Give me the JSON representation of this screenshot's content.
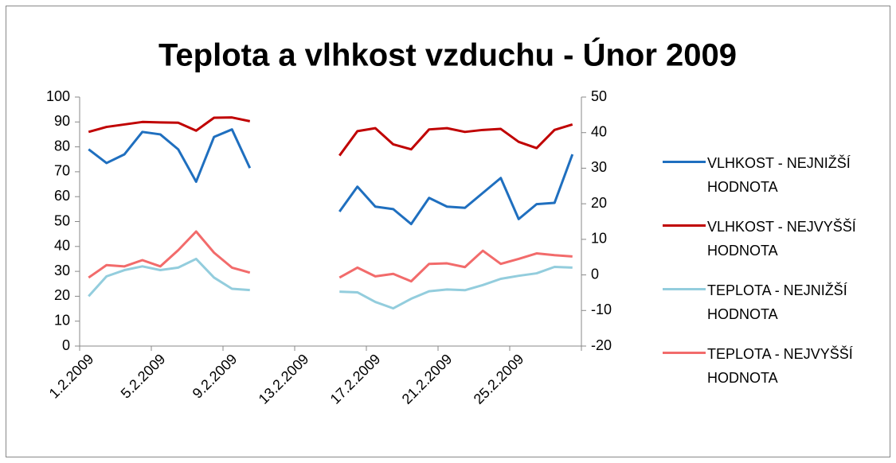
{
  "chart_data": {
    "type": "line",
    "title": "Teplota a vlhkost vzduchu - Únor 2009",
    "categories": [
      "1.2.2009",
      null,
      null,
      null,
      "5.2.2009",
      null,
      null,
      null,
      "9.2.2009",
      null,
      null,
      null,
      "13.2.2009",
      null,
      null,
      null,
      "17.2.2009",
      null,
      null,
      null,
      "21.2.2009",
      null,
      null,
      null,
      "25.2.2009",
      null,
      null,
      null
    ],
    "ylim": [
      0,
      100
    ],
    "yticks": [
      0,
      10,
      20,
      30,
      40,
      50,
      60,
      70,
      80,
      90,
      100
    ],
    "y2lim": [
      -20,
      50
    ],
    "y2ticks": [
      -20,
      -10,
      0,
      10,
      20,
      30,
      40,
      50
    ],
    "series": [
      {
        "name": "VLHKOST - NEJNIŽŠÍ HODNOTA",
        "color": "#1f6fbf",
        "values": [
          79,
          73.5,
          77,
          86,
          85,
          79,
          66,
          84,
          87,
          71.5,
          null,
          null,
          null,
          null,
          54,
          64,
          56,
          55,
          49,
          59.5,
          56,
          55.5,
          61.5,
          67.5,
          51,
          57,
          57.5,
          77
        ]
      },
      {
        "name": "VLHKOST - NEJVYŠŠÍ HODNOTA",
        "color": "#c00000",
        "values": [
          86,
          88,
          89,
          90,
          89.8,
          89.7,
          86.5,
          91.7,
          91.8,
          90.3,
          null,
          null,
          null,
          null,
          76.5,
          86.3,
          87.5,
          81,
          79,
          87,
          87.5,
          86,
          86.8,
          87.2,
          82,
          79.5,
          86.8,
          89
        ]
      },
      {
        "name": "TEPLOTA - NEJNIŽŠÍ HODNOTA",
        "color": "#93cddd",
        "axis": "y2",
        "values": [
          -6,
          -0.4,
          1.35,
          2.4,
          1.35,
          2.05,
          4.5,
          -0.75,
          -3.9,
          -4.25,
          null,
          null,
          null,
          null,
          -4.7,
          -4.9,
          -7.6,
          -9.4,
          -6.7,
          -4.6,
          -4.1,
          -4.3,
          -2.85,
          -1.1,
          -0.25,
          0.45,
          2.25,
          2.05
        ]
      },
      {
        "name": "TEPLOTA - NEJVYŠŠÍ HODNOTA",
        "color": "#f26b6b",
        "axis": "y2",
        "values": [
          -0.75,
          2.75,
          2.4,
          4.15,
          2.4,
          6.95,
          12.2,
          6.25,
          2.05,
          0.65,
          null,
          null,
          null,
          null,
          -0.75,
          2.05,
          -0.4,
          0.3,
          -1.8,
          3.1,
          3.25,
          2.2,
          6.8,
          3.1,
          4.5,
          6.05,
          5.55,
          5.2
        ]
      }
    ]
  }
}
